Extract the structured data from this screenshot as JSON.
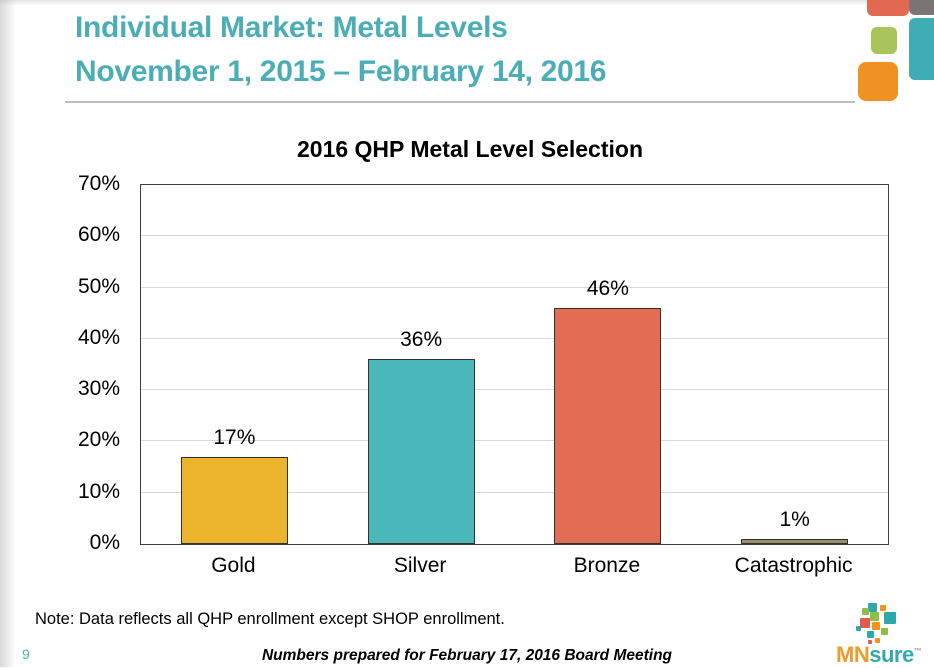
{
  "header": {
    "title_line1": "Individual Market: Metal Levels",
    "title_line2": "November 1, 2015 – February 14, 2016",
    "title_color": "#4AAEB4"
  },
  "decor_squares": {
    "coral": "#E0694F",
    "gray": "#7A7472",
    "teal": "#3FADB3",
    "green": "#A9C45B",
    "orange": "#F09123"
  },
  "chart_data": {
    "type": "bar",
    "title": "2016 QHP Metal Level Selection",
    "categories": [
      "Gold",
      "Silver",
      "Bronze",
      "Catastrophic"
    ],
    "values": [
      17,
      36,
      46,
      1
    ],
    "data_labels": [
      "17%",
      "36%",
      "46%",
      "1%"
    ],
    "bar_colors": [
      "#ECB32C",
      "#4AB8BA",
      "#E26D55",
      "#97906F"
    ],
    "bar_border_color": "#33332B",
    "ylim": [
      0,
      70
    ],
    "ytick_step": 10,
    "ytick_labels": [
      "0%",
      "10%",
      "20%",
      "30%",
      "40%",
      "50%",
      "60%",
      "70%"
    ],
    "grid": true,
    "grid_color": "#D9D9D9",
    "legend": false,
    "xlabel": "",
    "ylabel": ""
  },
  "footer": {
    "note": "Note: Data reflects all QHP enrollment except SHOP enrollment.",
    "center_text": "Numbers prepared for February 17, 2016 Board Meeting",
    "page_number": "9"
  },
  "logo": {
    "mn": "MN",
    "sure": "sure",
    "trademark": "™",
    "mn_color": "#F09A28",
    "sure_color": "#35AAAE",
    "mosaic_colors": [
      "#2FA8AD",
      "#8CBF45",
      "#F6921E",
      "#E05A4E"
    ]
  }
}
